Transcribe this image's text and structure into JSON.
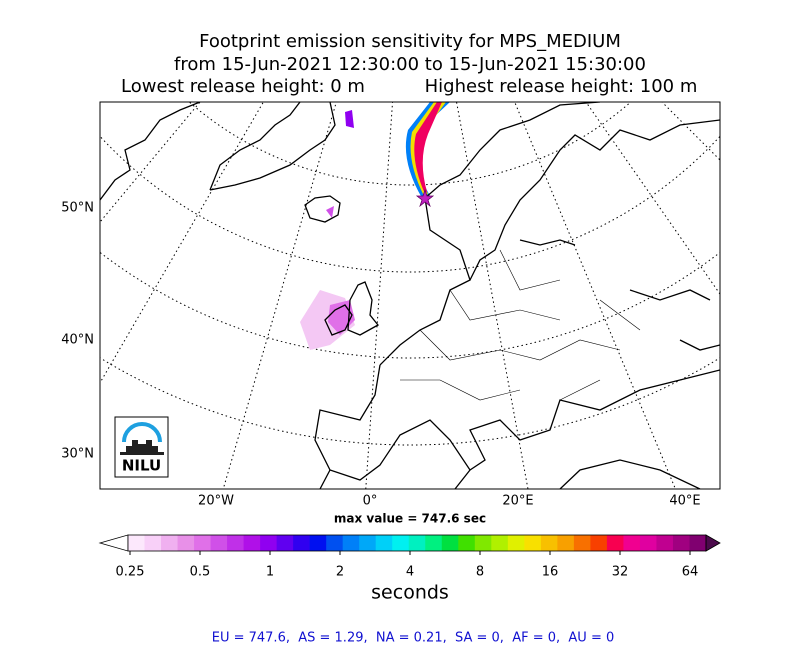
{
  "title": {
    "line1": "Footprint emission sensitivity for MPS_MEDIUM",
    "line2": "from 15-Jun-2021 12:30:00 to 15-Jun-2021 15:30:00",
    "left": "Lowest release height: 0 m",
    "right": "Highest release height: 100 m"
  },
  "map": {
    "lat_labels": [
      "50°N",
      "40°N",
      "30°N"
    ],
    "lon_labels": [
      "20°W",
      "0°",
      "20°E",
      "40°E"
    ],
    "logo": "NILU",
    "max_value": "max value = 747.6 sec"
  },
  "colorbar": {
    "ticks": [
      0.25,
      0.5,
      1,
      2,
      4,
      8,
      16,
      32,
      64
    ],
    "unit": "seconds",
    "colors": [
      "#fce8fc",
      "#f8d0f8",
      "#f0b0f0",
      "#e890e8",
      "#e070e8",
      "#d050e8",
      "#c030e8",
      "#b010e8",
      "#9000f0",
      "#6000f0",
      "#3000f0",
      "#0010f0",
      "#0050f0",
      "#0080f8",
      "#00a8f8",
      "#00d0f8",
      "#00f0f0",
      "#00f0c0",
      "#00f080",
      "#00e040",
      "#40e000",
      "#80e800",
      "#b0f000",
      "#e0f000",
      "#f8e000",
      "#f8c000",
      "#f8a000",
      "#f87000",
      "#f84000",
      "#f80050",
      "#f00090",
      "#e000a0",
      "#c00090",
      "#a00080",
      "#800070"
    ]
  },
  "footer": "EU = 747.6,  AS = 1.29,  NA = 0.21,  SA = 0,  AF = 0,  AU = 0"
}
